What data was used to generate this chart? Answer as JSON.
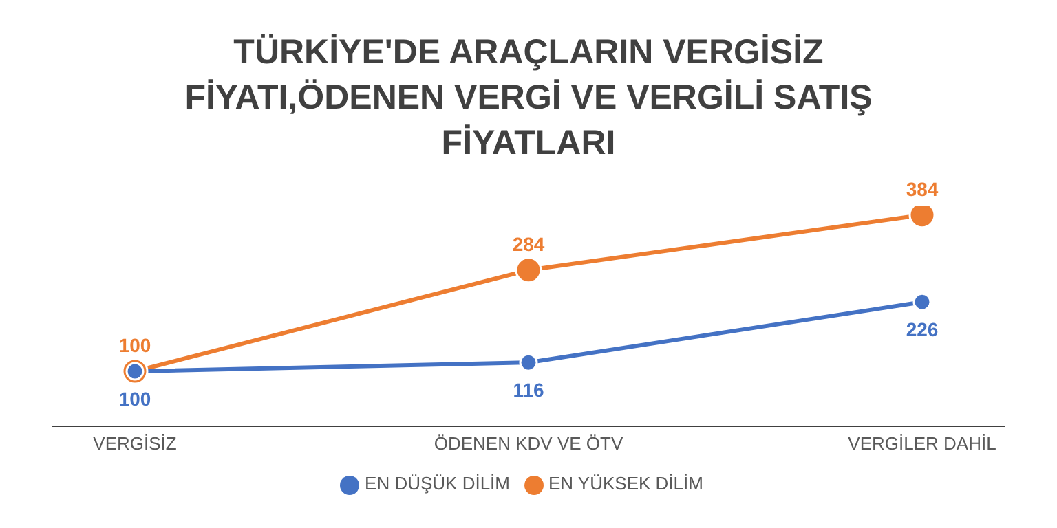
{
  "chart_data": {
    "type": "line",
    "title": "TÜRKİYE'DE ARAÇLARIN VERGİSİZ FİYATI,ÖDENEN VERGİ VE VERGİLİ SATIŞ FİYATLARI",
    "categories": [
      "VERGİSİZ",
      "ÖDENEN KDV VE ÖTV",
      "VERGİLER DAHİL"
    ],
    "series": [
      {
        "name": "EN DÜŞÜK DİLİM",
        "color": "#4472c4",
        "values": [
          100,
          116,
          226
        ]
      },
      {
        "name": "EN YÜKSEK DİLİM",
        "color": "#ed7d31",
        "values": [
          100,
          284,
          384
        ]
      }
    ],
    "legend": "bottom",
    "marker": "circle",
    "data_labels": true,
    "tick_labels": "x"
  }
}
